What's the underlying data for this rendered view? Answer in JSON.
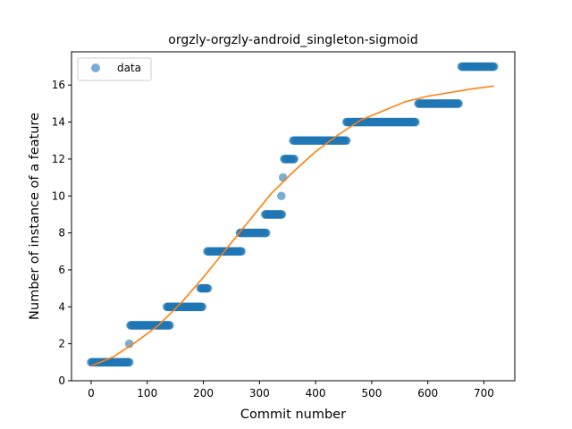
{
  "chart_data": {
    "type": "scatter",
    "title": "orgzly-orgzly-android_singleton-sigmoid",
    "xlabel": "Commit number",
    "ylabel": "Number of instance of a feature",
    "xlim": [
      -35,
      755
    ],
    "ylim": [
      0,
      17.8
    ],
    "xticks": [
      0,
      100,
      200,
      300,
      400,
      500,
      600,
      700
    ],
    "yticks": [
      0,
      2,
      4,
      6,
      8,
      10,
      12,
      14,
      16
    ],
    "grid": false,
    "legend": {
      "position": "top-left",
      "entries": [
        "data"
      ]
    },
    "colors": {
      "data": "#1f77b4",
      "fit": "#ff7f0e"
    },
    "series": [
      {
        "name": "data",
        "kind": "scatter",
        "segments": [
          {
            "x_start": 0,
            "x_end": 68,
            "y": 1
          },
          {
            "x_start": 68,
            "x_end": 68,
            "y": 2
          },
          {
            "x_start": 70,
            "x_end": 140,
            "y": 3
          },
          {
            "x_start": 135,
            "x_end": 198,
            "y": 4
          },
          {
            "x_start": 195,
            "x_end": 208,
            "y": 5
          },
          {
            "x_start": 207,
            "x_end": 268,
            "y": 7
          },
          {
            "x_start": 265,
            "x_end": 312,
            "y": 8
          },
          {
            "x_start": 310,
            "x_end": 340,
            "y": 9
          },
          {
            "x_start": 339,
            "x_end": 339,
            "y": 10
          },
          {
            "x_start": 342,
            "x_end": 342,
            "y": 11
          },
          {
            "x_start": 344,
            "x_end": 362,
            "y": 12
          },
          {
            "x_start": 360,
            "x_end": 455,
            "y": 13
          },
          {
            "x_start": 455,
            "x_end": 578,
            "y": 14
          },
          {
            "x_start": 583,
            "x_end": 655,
            "y": 15
          },
          {
            "x_start": 660,
            "x_end": 718,
            "y": 17
          }
        ]
      },
      {
        "name": "fit",
        "kind": "line",
        "points": [
          [
            0,
            0.8
          ],
          [
            40,
            1.3
          ],
          [
            80,
            2.1
          ],
          [
            120,
            3.0
          ],
          [
            160,
            4.2
          ],
          [
            200,
            5.6
          ],
          [
            240,
            7.1
          ],
          [
            280,
            8.6
          ],
          [
            320,
            10.1
          ],
          [
            360,
            11.3
          ],
          [
            400,
            12.4
          ],
          [
            440,
            13.3
          ],
          [
            480,
            14.1
          ],
          [
            520,
            14.6
          ],
          [
            560,
            15.1
          ],
          [
            600,
            15.4
          ],
          [
            640,
            15.6
          ],
          [
            680,
            15.8
          ],
          [
            718,
            15.95
          ]
        ]
      }
    ]
  }
}
